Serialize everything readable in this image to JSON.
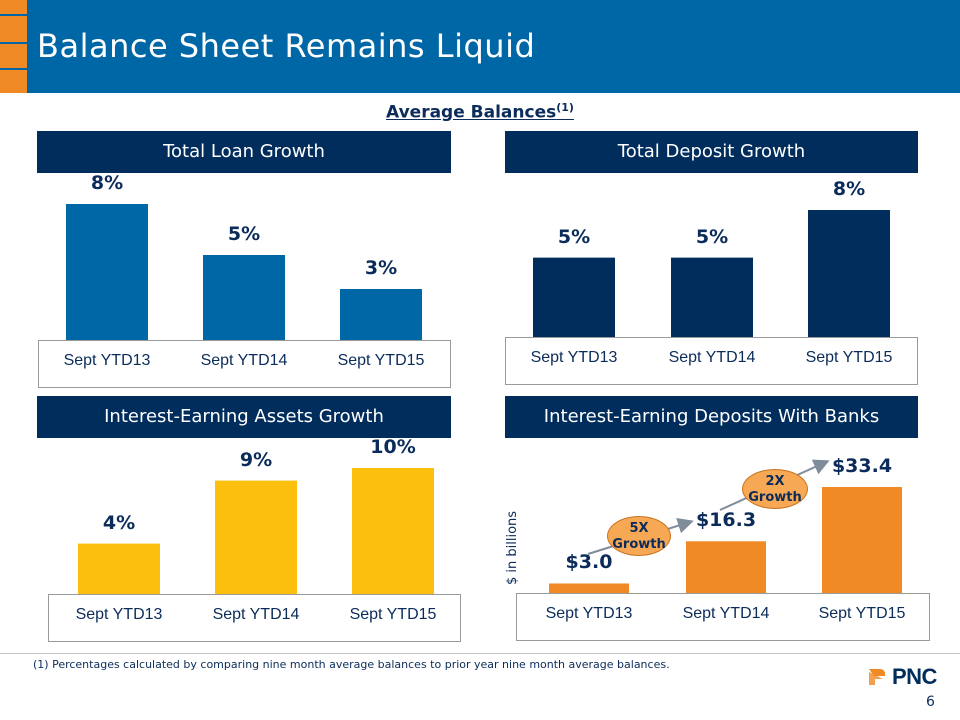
{
  "title": "Balance Sheet Remains Liquid",
  "subtitle": "Average Balances",
  "subtitle_sup": "(1)",
  "colors": {
    "header_blue": "#0067a7",
    "navy": "#002d5c",
    "loan_bar": "#0067a7",
    "deposit_bar": "#002d5c",
    "assets_bar": "#fdbf0e",
    "banks_bar": "#f08a24"
  },
  "chart_data": [
    {
      "type": "bar",
      "title": "Total Loan Growth",
      "categories": [
        "Sept YTD13",
        "Sept YTD14",
        "Sept YTD15"
      ],
      "values": [
        8,
        5,
        3
      ],
      "labels": [
        "8%",
        "5%",
        "3%"
      ],
      "ylim": [
        0,
        8
      ]
    },
    {
      "type": "bar",
      "title": "Total Deposit Growth",
      "categories": [
        "Sept YTD13",
        "Sept YTD14",
        "Sept YTD15"
      ],
      "values": [
        5,
        5,
        8
      ],
      "labels": [
        "5%",
        "5%",
        "8%"
      ],
      "ylim": [
        0,
        8
      ]
    },
    {
      "type": "bar",
      "title": "Interest-Earning Assets Growth",
      "categories": [
        "Sept YTD13",
        "Sept YTD14",
        "Sept YTD15"
      ],
      "values": [
        4,
        9,
        10
      ],
      "labels": [
        "4%",
        "9%",
        "10%"
      ],
      "ylim": [
        0,
        10
      ]
    },
    {
      "type": "bar",
      "title": "Interest-Earning Deposits With Banks",
      "categories": [
        "Sept YTD13",
        "Sept YTD14",
        "Sept YTD15"
      ],
      "values": [
        3.0,
        16.3,
        33.4
      ],
      "labels": [
        "$3.0",
        "$16.3",
        "$33.4"
      ],
      "ylabel": "$ in billions",
      "ylim": [
        0,
        33.4
      ],
      "annotations": [
        "5X Growth",
        "2X Growth"
      ]
    }
  ],
  "badges": {
    "first_line1": "5X",
    "first_line2": "Growth",
    "second_line1": "2X",
    "second_line2": "Growth"
  },
  "footnote": "(1) Percentages calculated by comparing nine month average balances to prior year nine month average balances.",
  "logo_text": "PNC",
  "page_number": "6"
}
